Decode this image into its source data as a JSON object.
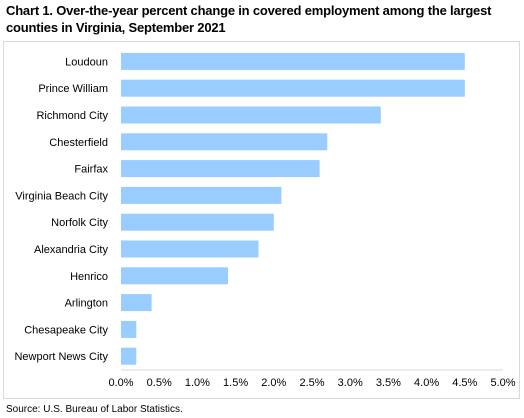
{
  "title": "Chart 1. Over-the-year percent change in covered employment among the largest counties in Virginia, September 2021",
  "source": "Source: U.S. Bureau of Labor Statistics.",
  "chart_data": {
    "type": "bar",
    "orientation": "horizontal",
    "title": "Chart 1. Over-the-year percent change in covered employment among the largest counties in Virginia, September 2021",
    "xlabel": "",
    "ylabel": "",
    "bar_color": "#99ccff",
    "grid": false,
    "legend": "none",
    "xlim": [
      0,
      5
    ],
    "x_ticks": [
      0,
      0.5,
      1.0,
      1.5,
      2.0,
      2.5,
      3.0,
      3.5,
      4.0,
      4.5,
      5.0
    ],
    "x_tick_labels": [
      "0.0%",
      "0.5%",
      "1.0%",
      "1.5%",
      "2.0%",
      "2.5%",
      "3.0%",
      "3.5%",
      "4.0%",
      "4.5%",
      "5.0%"
    ],
    "categories": [
      "Loudoun",
      "Prince William",
      "Richmond City",
      "Chesterfield",
      "Fairfax",
      "Virginia Beach City",
      "Norfolk City",
      "Alexandria City",
      "Henrico",
      "Arlington",
      "Chesapeake City",
      "Newport News City"
    ],
    "values": [
      4.5,
      4.5,
      3.4,
      2.7,
      2.6,
      2.1,
      2.0,
      1.8,
      1.4,
      0.4,
      0.2,
      0.2
    ]
  }
}
